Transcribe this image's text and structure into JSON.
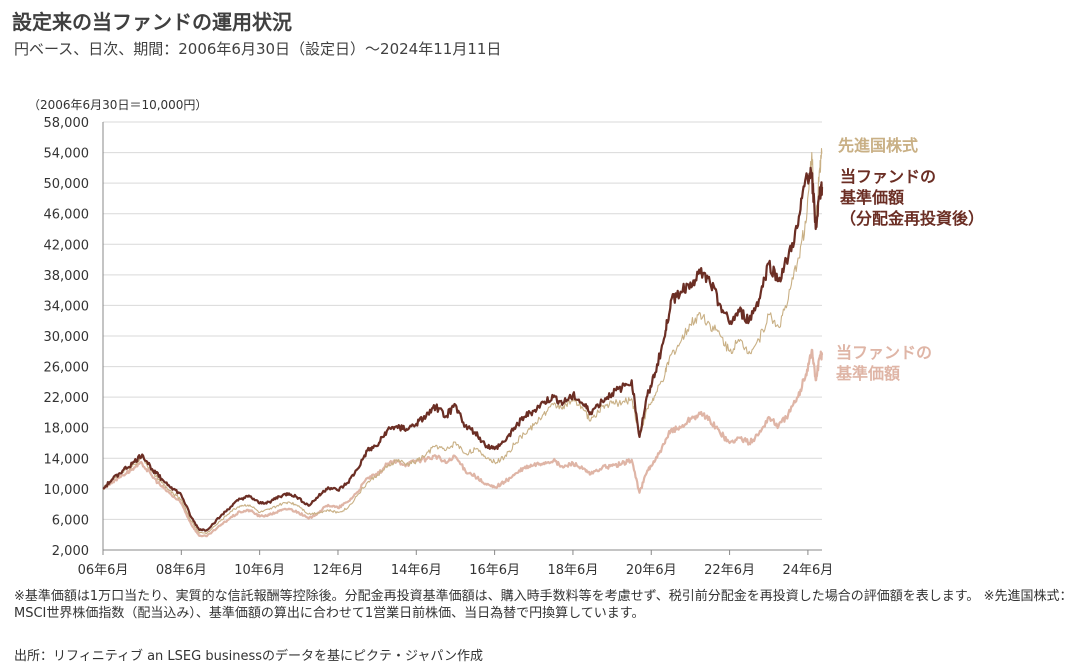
{
  "title": "設定来の当ファンドの運用状況",
  "subtitle": "円ベース、日次、期間：2006年6月30日（設定日）～2024年11月11日",
  "notes": {
    "basis": "※基準価額は1万口当たり、実質的な信託報酬等控除後。分配金再投資基準価額は、購入時手数料等を考慮せず、税引前分配金を再投資した場合の評価額を表します。 ※先進国株式：MSCI世界株価指数（配当込み）、基準価額の算出に合わせて1営業日前株価、当日為替で円換算しています。",
    "source": "出所：リフィニティブ an LSEG businessのデータを基にピクテ・ジャパン作成"
  },
  "chart_data": {
    "type": "line",
    "y_unit_note": "（2006年6月30日＝10,000円）",
    "ylim": [
      2000,
      58000
    ],
    "yticks": [
      "2,000",
      "6,000",
      "10,000",
      "14,000",
      "18,000",
      "22,000",
      "26,000",
      "30,000",
      "34,000",
      "38,000",
      "42,000",
      "46,000",
      "50,000",
      "54,000",
      "58,000"
    ],
    "ytick_values": [
      2000,
      6000,
      10000,
      14000,
      18000,
      22000,
      26000,
      30000,
      34000,
      38000,
      42000,
      46000,
      50000,
      54000,
      58000
    ],
    "xlim": [
      2006.5,
      2024.86
    ],
    "xticks": [
      "06年6月",
      "08年6月",
      "10年6月",
      "12年6月",
      "14年6月",
      "16年6月",
      "18年6月",
      "20年6月",
      "22年6月",
      "24年6月"
    ],
    "xtick_values": [
      2006.5,
      2008.5,
      2010.5,
      2012.5,
      2014.5,
      2016.5,
      2018.5,
      2020.5,
      2022.5,
      2024.5
    ],
    "grid": true,
    "colors": {
      "reinvested": "#6b2e24",
      "world": "#c9b085",
      "nav": "#dfb5a6",
      "grid": "#d9d9d9"
    },
    "series": [
      {
        "key": "world",
        "name": "先進国株式",
        "x": [
          2006.5,
          2006.75,
          2007.0,
          2007.25,
          2007.5,
          2007.75,
          2008.0,
          2008.25,
          2008.5,
          2008.75,
          2008.95,
          2009.15,
          2009.5,
          2009.75,
          2010.0,
          2010.25,
          2010.5,
          2010.75,
          2011.0,
          2011.25,
          2011.5,
          2011.75,
          2012.0,
          2012.25,
          2012.5,
          2012.75,
          2013.0,
          2013.25,
          2013.5,
          2013.75,
          2014.0,
          2014.25,
          2014.5,
          2014.75,
          2015.0,
          2015.25,
          2015.5,
          2015.75,
          2016.0,
          2016.25,
          2016.5,
          2016.75,
          2017.0,
          2017.25,
          2017.5,
          2017.75,
          2018.0,
          2018.25,
          2018.5,
          2018.75,
          2018.95,
          2019.25,
          2019.5,
          2019.75,
          2020.0,
          2020.2,
          2020.4,
          2020.6,
          2020.85,
          2021.0,
          2021.25,
          2021.5,
          2021.75,
          2022.0,
          2022.25,
          2022.5,
          2022.75,
          2023.0,
          2023.25,
          2023.5,
          2023.75,
          2024.0,
          2024.25,
          2024.45,
          2024.6,
          2024.7,
          2024.8,
          2024.86
        ],
        "values": [
          10000,
          11200,
          12300,
          13000,
          14200,
          12200,
          10800,
          9500,
          8600,
          5800,
          4300,
          4200,
          5800,
          7000,
          7800,
          7900,
          6900,
          7300,
          7900,
          8300,
          7800,
          6700,
          6900,
          7200,
          6900,
          7500,
          9200,
          10800,
          11800,
          12800,
          13800,
          13200,
          13600,
          14500,
          15700,
          15000,
          16100,
          14600,
          15200,
          14300,
          13500,
          14100,
          15800,
          17200,
          18300,
          19800,
          21000,
          20800,
          21500,
          20600,
          18900,
          20800,
          21200,
          21200,
          21800,
          17000,
          20500,
          22200,
          25000,
          27500,
          29200,
          31500,
          33000,
          31500,
          30200,
          28000,
          29300,
          28000,
          29500,
          32800,
          31200,
          34800,
          40200,
          44800,
          54000,
          44500,
          52000,
          54000
        ]
      },
      {
        "key": "reinvested",
        "name": "当ファンドの基準価額（分配金再投資後）",
        "label_lines": [
          "当ファンドの",
          "基準価額",
          "（分配金再投資後）"
        ],
        "x": [
          2006.5,
          2006.75,
          2007.0,
          2007.25,
          2007.5,
          2007.75,
          2008.0,
          2008.25,
          2008.5,
          2008.75,
          2008.95,
          2009.15,
          2009.5,
          2009.75,
          2010.0,
          2010.25,
          2010.5,
          2010.75,
          2011.0,
          2011.25,
          2011.5,
          2011.75,
          2012.0,
          2012.25,
          2012.5,
          2012.75,
          2013.0,
          2013.25,
          2013.5,
          2013.75,
          2014.0,
          2014.25,
          2014.5,
          2014.75,
          2015.0,
          2015.25,
          2015.5,
          2015.75,
          2016.0,
          2016.25,
          2016.5,
          2016.75,
          2017.0,
          2017.25,
          2017.5,
          2017.75,
          2018.0,
          2018.25,
          2018.5,
          2018.75,
          2018.95,
          2019.25,
          2019.5,
          2019.75,
          2020.0,
          2020.2,
          2020.4,
          2020.6,
          2020.85,
          2021.0,
          2021.25,
          2021.5,
          2021.75,
          2022.0,
          2022.25,
          2022.5,
          2022.75,
          2023.0,
          2023.25,
          2023.5,
          2023.75,
          2024.0,
          2024.25,
          2024.45,
          2024.6,
          2024.7,
          2024.8,
          2024.86
        ],
        "values": [
          10000,
          11300,
          12400,
          13300,
          14500,
          12600,
          11300,
          10200,
          9200,
          6300,
          4700,
          4600,
          6400,
          7600,
          8700,
          9000,
          8100,
          8300,
          9000,
          9400,
          8800,
          7800,
          9000,
          10200,
          9800,
          10800,
          12600,
          15000,
          15600,
          17600,
          18200,
          17800,
          18500,
          19500,
          20800,
          19500,
          21000,
          18200,
          17400,
          15800,
          15200,
          16200,
          18000,
          19400,
          20200,
          21300,
          22000,
          21200,
          22300,
          21100,
          20000,
          21500,
          22500,
          23200,
          24200,
          16800,
          22200,
          25200,
          30000,
          34600,
          35800,
          37000,
          38200,
          37000,
          34200,
          31600,
          33200,
          32000,
          34800,
          39500,
          37200,
          40300,
          44500,
          50800,
          51200,
          44000,
          48500,
          49500
        ]
      },
      {
        "key": "nav",
        "name": "当ファンドの基準価額",
        "label_lines": [
          "当ファンドの",
          "基準価額"
        ],
        "x": [
          2006.5,
          2006.75,
          2007.0,
          2007.25,
          2007.5,
          2007.75,
          2008.0,
          2008.25,
          2008.5,
          2008.75,
          2008.95,
          2009.15,
          2009.5,
          2009.75,
          2010.0,
          2010.25,
          2010.5,
          2010.75,
          2011.0,
          2011.25,
          2011.5,
          2011.75,
          2012.0,
          2012.25,
          2012.5,
          2012.75,
          2013.0,
          2013.25,
          2013.5,
          2013.75,
          2014.0,
          2014.25,
          2014.5,
          2014.75,
          2015.0,
          2015.25,
          2015.5,
          2015.75,
          2016.0,
          2016.25,
          2016.5,
          2016.75,
          2017.0,
          2017.25,
          2017.5,
          2017.75,
          2018.0,
          2018.25,
          2018.5,
          2018.75,
          2018.95,
          2019.25,
          2019.5,
          2019.75,
          2020.0,
          2020.2,
          2020.4,
          2020.6,
          2020.85,
          2021.0,
          2021.25,
          2021.5,
          2021.75,
          2022.0,
          2022.25,
          2022.5,
          2022.75,
          2023.0,
          2023.25,
          2023.5,
          2023.75,
          2024.0,
          2024.25,
          2024.45,
          2024.6,
          2024.7,
          2024.8,
          2024.86
        ],
        "values": [
          10000,
          11000,
          11800,
          12600,
          13300,
          11700,
          10300,
          9200,
          8100,
          5400,
          3900,
          3800,
          5200,
          6200,
          7000,
          7200,
          6400,
          6600,
          7100,
          7400,
          6900,
          6100,
          6900,
          7900,
          7500,
          8300,
          9600,
          11400,
          11800,
          13200,
          13600,
          13200,
          13700,
          13900,
          14300,
          13400,
          14200,
          12400,
          11700,
          10600,
          10200,
          10900,
          11800,
          12700,
          13100,
          13400,
          13700,
          12800,
          13400,
          12600,
          11900,
          12800,
          13000,
          13300,
          13800,
          9500,
          12400,
          13700,
          16000,
          17700,
          18000,
          19200,
          19800,
          19000,
          17400,
          16000,
          16700,
          16000,
          17200,
          19400,
          18200,
          19800,
          22000,
          25000,
          28200,
          24200,
          27200,
          27500
        ]
      }
    ]
  }
}
